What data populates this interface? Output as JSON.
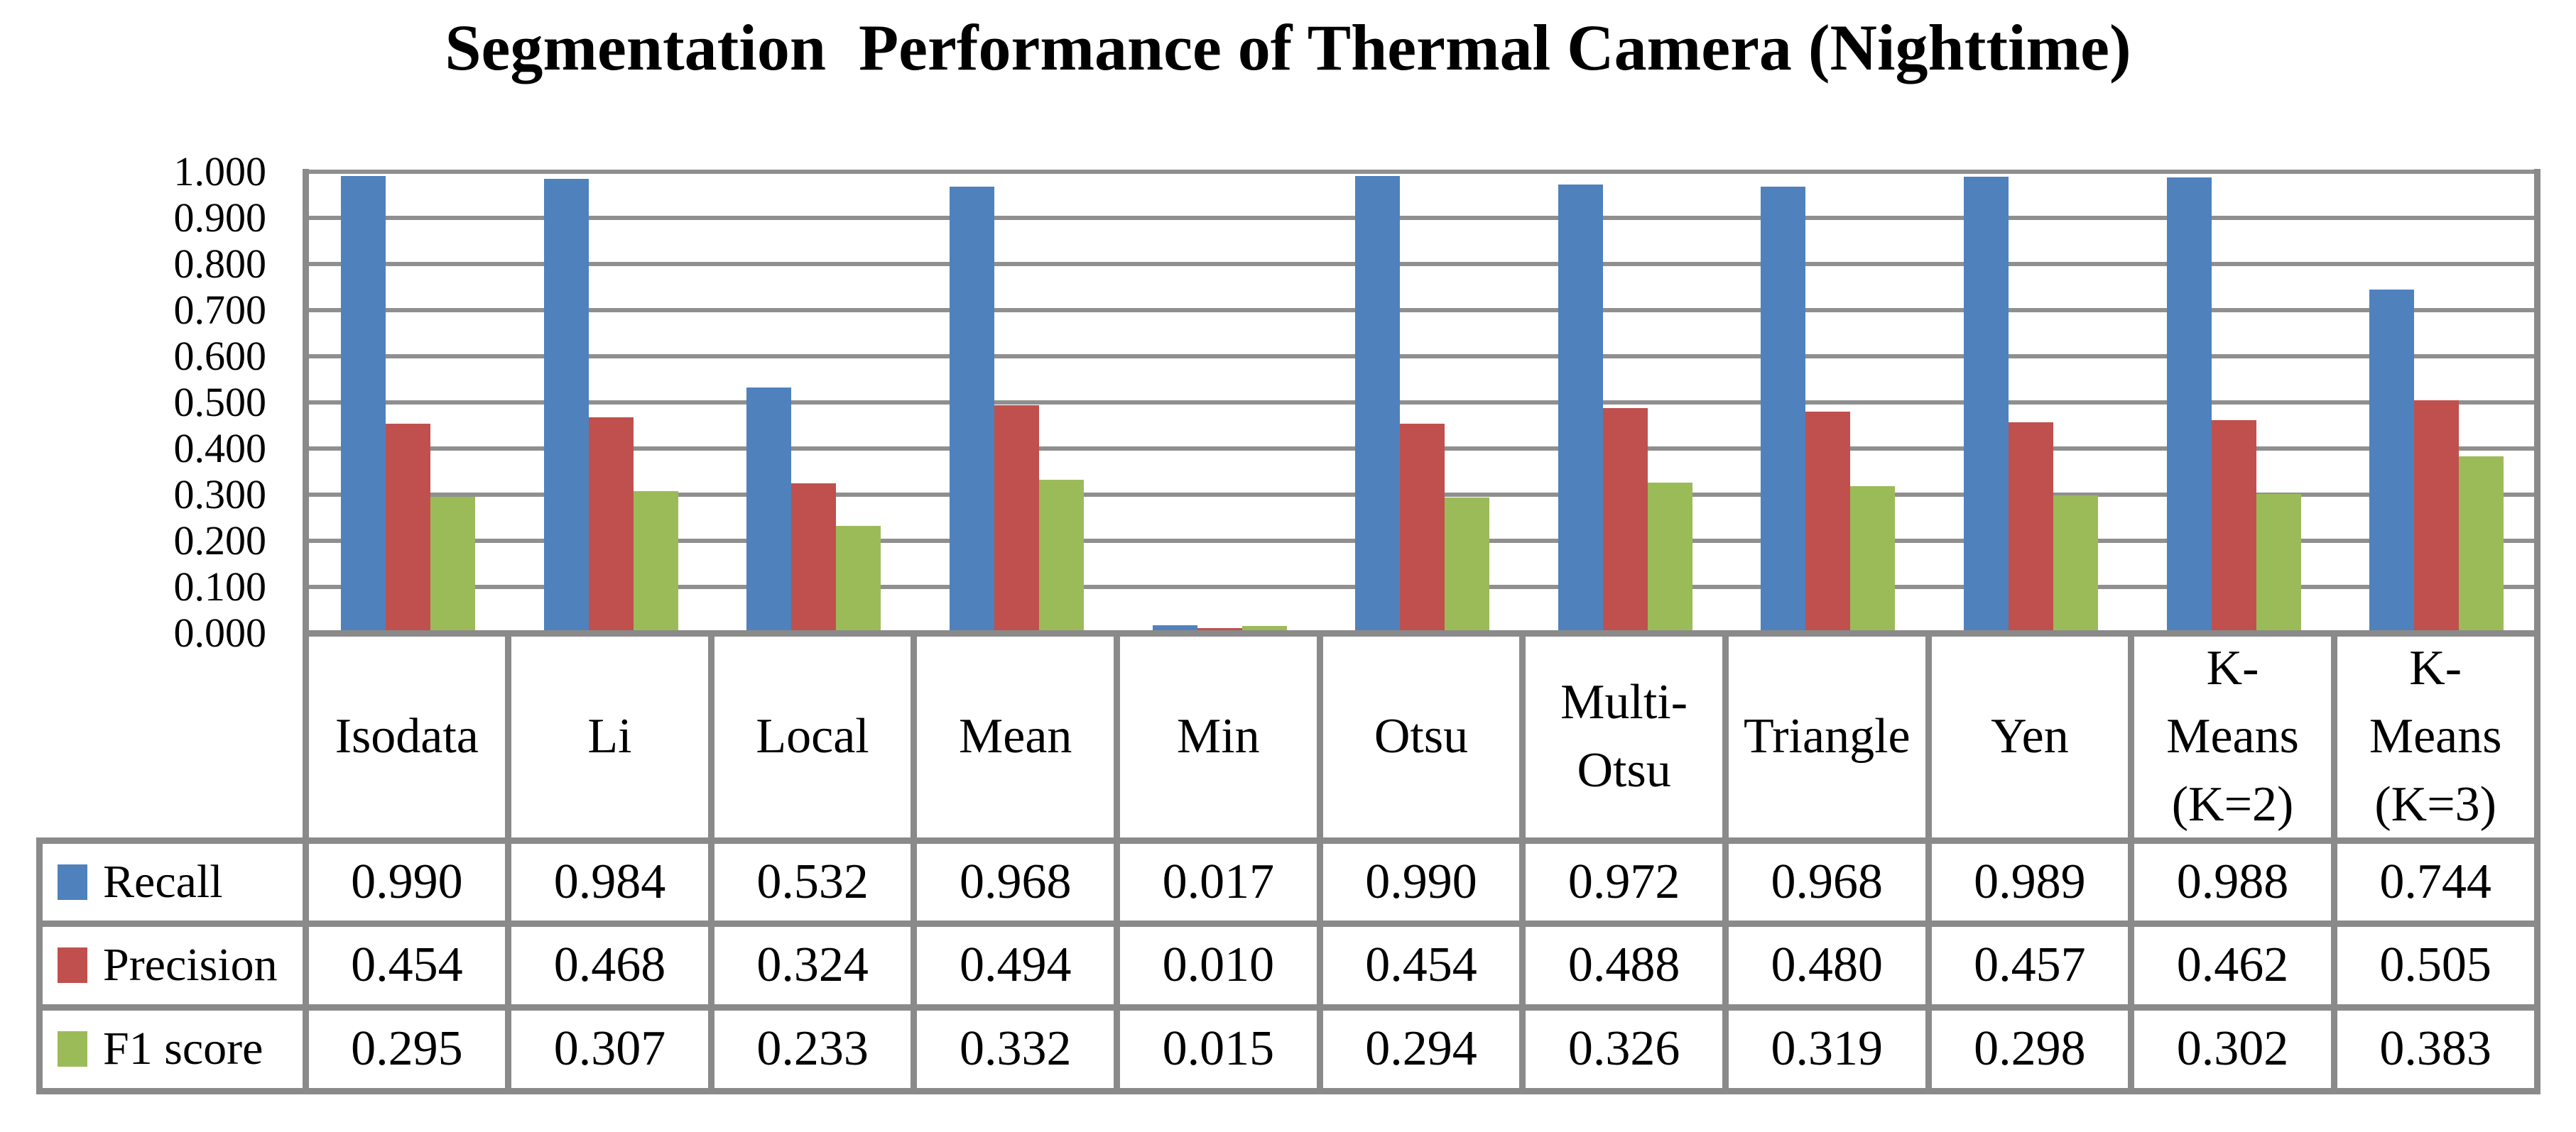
{
  "chart_data": {
    "type": "bar",
    "title": "Segmentation  Performance of Thermal Camera (Nighttime)",
    "categories": [
      "Isodata",
      "Li",
      "Local",
      "Mean",
      "Min",
      "Otsu",
      "Multi-Otsu",
      "Triangle",
      "Yen",
      "K-Means (K=2)",
      "K-Means (K=3)"
    ],
    "categories_display": [
      [
        "Isodata"
      ],
      [
        "Li"
      ],
      [
        "Local"
      ],
      [
        "Mean"
      ],
      [
        "Min"
      ],
      [
        "Otsu"
      ],
      [
        "Multi-",
        "Otsu"
      ],
      [
        "Triangle"
      ],
      [
        "Yen"
      ],
      [
        "K-",
        "Means",
        "(K=2)"
      ],
      [
        "K-",
        "Means",
        "(K=3)"
      ]
    ],
    "series": [
      {
        "name": "Recall",
        "color": "#4F81BD",
        "values": [
          0.99,
          0.984,
          0.532,
          0.968,
          0.017,
          0.99,
          0.972,
          0.968,
          0.989,
          0.988,
          0.744
        ]
      },
      {
        "name": "Precision",
        "color": "#C0504D",
        "values": [
          0.454,
          0.468,
          0.324,
          0.494,
          0.01,
          0.454,
          0.488,
          0.48,
          0.457,
          0.462,
          0.505
        ]
      },
      {
        "name": "F1 score",
        "color": "#9BBB59",
        "values": [
          0.295,
          0.307,
          0.233,
          0.332,
          0.015,
          0.294,
          0.326,
          0.319,
          0.298,
          0.302,
          0.383
        ]
      }
    ],
    "ylim": [
      0,
      1
    ],
    "ytick_step": 0.1,
    "ytick_labels": [
      "1.000",
      "0.900",
      "0.800",
      "0.700",
      "0.600",
      "0.500",
      "0.400",
      "0.300",
      "0.200",
      "0.100",
      "0.000"
    ],
    "grid": true,
    "legend_position": "data-table-left",
    "value_format": "3-decimals"
  },
  "colors": {
    "bar_blue": "#4F81BD",
    "bar_red": "#C0504D",
    "bar_green": "#9BBB59",
    "gridline": "#8F8F8F",
    "border": "#8A8A8A",
    "text": "#000000",
    "background": "#FFFFFF"
  }
}
